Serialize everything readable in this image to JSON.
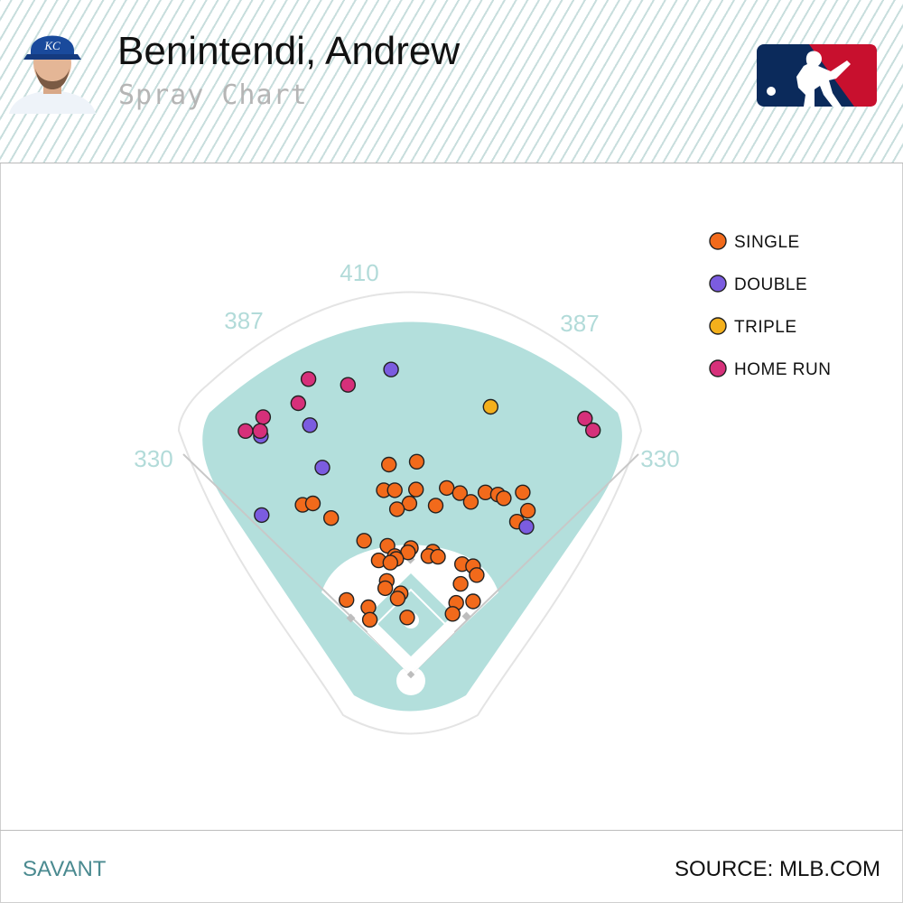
{
  "header": {
    "player_name": "Benintendi, Andrew",
    "subtitle": "Spray Chart",
    "team_cap_letters": "KC"
  },
  "footer": {
    "left_label": "SAVANT",
    "right_label": "SOURCE: MLB.COM"
  },
  "chart_data": {
    "type": "scatter",
    "field_distances": {
      "left_line": "330",
      "left_center": "387",
      "center": "410",
      "right_center": "387",
      "right_line": "330"
    },
    "legend_placement": "top-right",
    "colors": {
      "field": "#b3dfdc",
      "infield_dirt": "#ffffff",
      "Single": "#f26a1b",
      "Double": "#7b5ce0",
      "Triple": "#f4b01c",
      "Home Run": "#d6307a"
    },
    "legend": [
      {
        "key": "Single",
        "label": "SINGLE"
      },
      {
        "key": "Double",
        "label": "DOUBLE"
      },
      {
        "key": "Triple",
        "label": "TRIPLE"
      },
      {
        "key": "Home Run",
        "label": "HOME RUN"
      }
    ],
    "series": [
      {
        "name": "Single",
        "points": [
          [
            -30,
            287
          ],
          [
            8,
            291
          ],
          [
            -37,
            252
          ],
          [
            -22,
            252
          ],
          [
            7,
            253
          ],
          [
            49,
            255
          ],
          [
            67,
            248
          ],
          [
            102,
            249
          ],
          [
            119,
            246
          ],
          [
            127,
            241
          ],
          [
            153,
            249
          ],
          [
            -148,
            232
          ],
          [
            -134,
            234
          ],
          [
            -2,
            234
          ],
          [
            -19,
            226
          ],
          [
            34,
            231
          ],
          [
            82,
            236
          ],
          [
            160,
            224
          ],
          [
            145,
            209
          ],
          [
            -109,
            214
          ],
          [
            -64,
            183
          ],
          [
            -32,
            176
          ],
          [
            0,
            173
          ],
          [
            -4,
            167
          ],
          [
            30,
            168
          ],
          [
            24,
            162
          ],
          [
            37,
            161
          ],
          [
            -22,
            162
          ],
          [
            -44,
            156
          ],
          [
            -20,
            158
          ],
          [
            -28,
            153
          ],
          [
            70,
            151
          ],
          [
            85,
            148
          ],
          [
            90,
            136
          ],
          [
            -33,
            128
          ],
          [
            68,
            124
          ],
          [
            -35,
            118
          ],
          [
            -14,
            111
          ],
          [
            -18,
            104
          ],
          [
            62,
            98
          ],
          [
            85,
            100
          ],
          [
            -88,
            102
          ],
          [
            -58,
            92
          ],
          [
            57,
            83
          ],
          [
            -56,
            75
          ],
          [
            -5,
            78
          ]
        ]
      },
      {
        "name": "Double",
        "points": [
          [
            -27,
            417
          ],
          [
            -138,
            341
          ],
          [
            -205,
            326
          ],
          [
            -121,
            283
          ],
          [
            -204,
            218
          ],
          [
            158,
            202
          ]
        ]
      },
      {
        "name": "Triple",
        "points": [
          [
            109,
            366
          ]
        ]
      },
      {
        "name": "Home Run",
        "points": [
          [
            -86,
            396
          ],
          [
            -140,
            404
          ],
          [
            -154,
            371
          ],
          [
            -202,
            352
          ],
          [
            -226,
            333
          ],
          [
            -206,
            333
          ],
          [
            238,
            350
          ],
          [
            249,
            334
          ]
        ]
      }
    ]
  }
}
